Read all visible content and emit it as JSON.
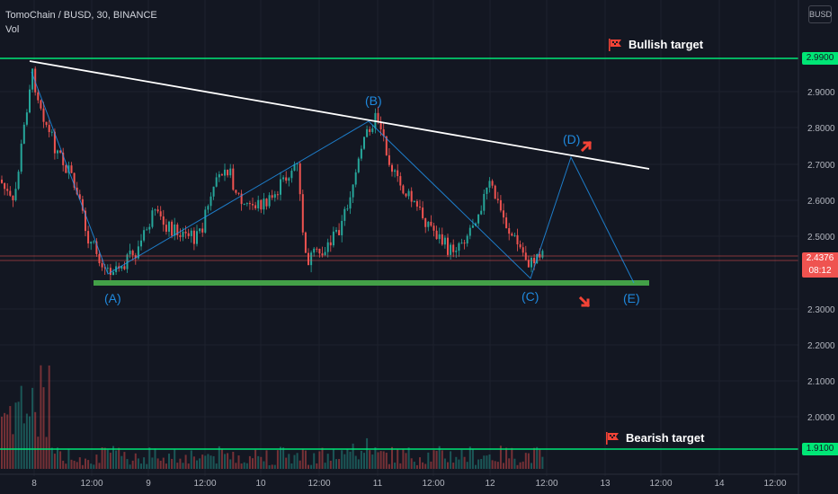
{
  "header": {
    "title": "TomoChain / BUSD, 30, BINANCE",
    "volume_label": "Vol",
    "currency_badge": "BUSD"
  },
  "annotations": {
    "bullish_target": "Bullish target",
    "bearish_target": "Bearish target",
    "wave_labels": [
      "(A)",
      "(B)",
      "(C)",
      "(D)",
      "(E)"
    ]
  },
  "price_axis": {
    "ticks": [
      "2.9000",
      "2.8000",
      "2.7000",
      "2.6000",
      "2.5000",
      "2.3000",
      "2.2000",
      "2.1000",
      "2.0000"
    ],
    "bullish_level": "2.9900",
    "bearish_level": "1.9100",
    "current_price": "2.4376",
    "countdown": "08:12"
  },
  "time_axis": {
    "ticks": [
      "8",
      "12:00",
      "9",
      "12:00",
      "10",
      "12:00",
      "11",
      "12:00",
      "12",
      "12:00",
      "13",
      "12:00",
      "14",
      "12:00"
    ]
  },
  "colors": {
    "background": "#131722",
    "up_candle": "#26a69a",
    "down_candle": "#ef5350",
    "target_line": "#00e676",
    "support_band": "#43a047",
    "wave_line": "#2196f3",
    "trendline": "#ffffff",
    "arrow": "#f44336"
  },
  "icons": {
    "flag": "checkered-flag-icon",
    "up_arrow": "up-right-arrow-icon",
    "down_arrow": "down-right-arrow-icon"
  }
}
